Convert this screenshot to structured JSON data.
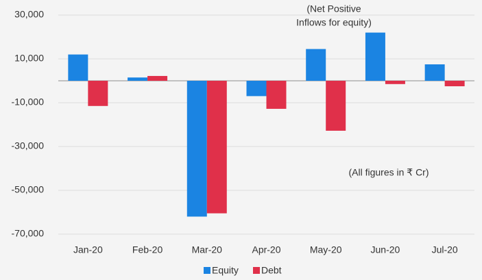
{
  "chart_data": {
    "type": "bar",
    "categories": [
      "Jan-20",
      "Feb-20",
      "Mar-20",
      "Apr-20",
      "May-20",
      "Jun-20",
      "Jul-20"
    ],
    "series": [
      {
        "name": "Equity",
        "color": "#1b84e2",
        "values": [
          12000,
          1500,
          -62000,
          -7000,
          14500,
          22000,
          7500
        ]
      },
      {
        "name": "Debt",
        "color": "#e0304a",
        "values": [
          -11500,
          2200,
          -60500,
          -12800,
          -22800,
          -1500,
          -2500
        ]
      }
    ],
    "ylim": [
      -70000,
      30000
    ],
    "yticks": [
      {
        "value": -70000,
        "label": "-70,000"
      },
      {
        "value": -50000,
        "label": "-50,000"
      },
      {
        "value": -30000,
        "label": "-30,000"
      },
      {
        "value": -10000,
        "label": "-10,000"
      },
      {
        "value": 10000,
        "label": "10,000"
      },
      {
        "value": 30000,
        "label": "30,000"
      }
    ],
    "grid": true,
    "legend": "bottom",
    "annotations": [
      "(Net Positive",
      "Inflows for equity)",
      "(All figures in ₹ Cr)"
    ]
  }
}
